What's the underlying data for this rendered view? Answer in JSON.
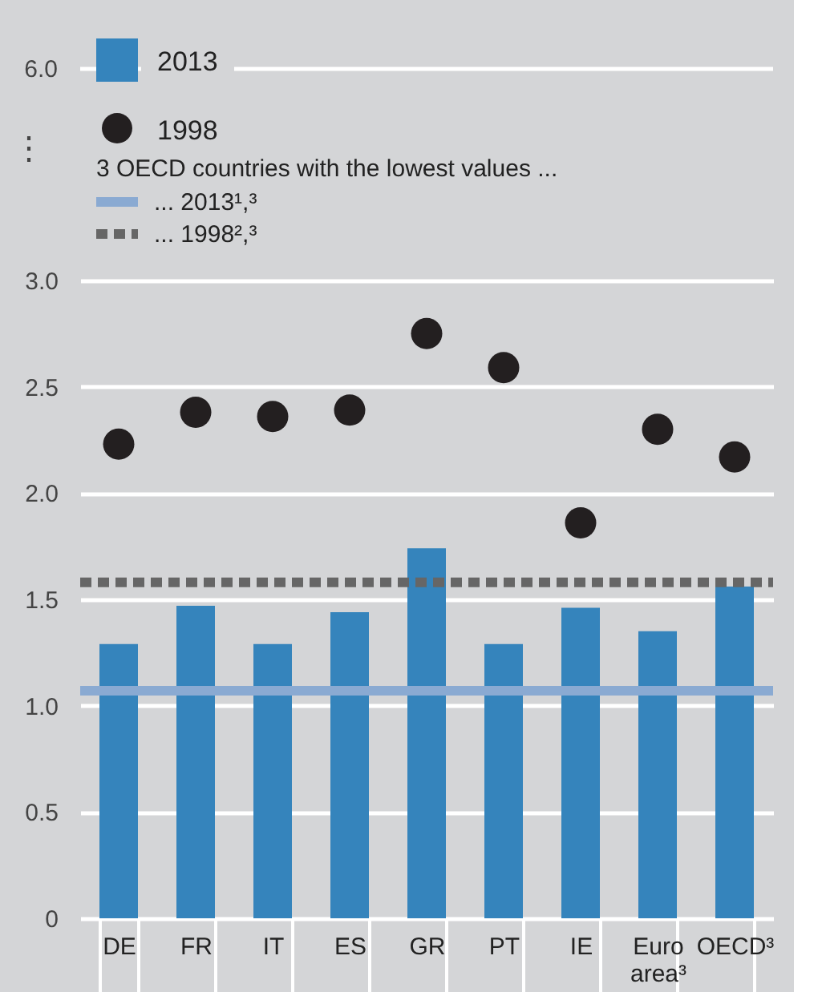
{
  "chart_data": {
    "type": "bar",
    "categories": [
      "DE",
      "FR",
      "IT",
      "ES",
      "GR",
      "PT",
      "IE",
      "Euro area³",
      "OECD³"
    ],
    "series": [
      {
        "name": "2013",
        "color": "#3584bc",
        "values": [
          1.29,
          1.47,
          1.29,
          1.44,
          1.74,
          1.29,
          1.46,
          1.35,
          1.56
        ]
      },
      {
        "name": "1998",
        "type": "scatter",
        "color": "#231f20",
        "values": [
          2.23,
          2.38,
          2.36,
          2.39,
          2.75,
          2.59,
          1.86,
          2.3,
          2.17
        ]
      }
    ],
    "ylim": [
      0,
      3
    ],
    "yticks": [
      0,
      0.5,
      {
        "value": 1,
        "label": "1.0"
      },
      1.5,
      {
        "value": 2,
        "label": "2.0"
      },
      2.5,
      {
        "value": 3,
        "label": "3.0"
      }
    ],
    "ref_lines": [
      {
        "axis": "y",
        "value": 1.07,
        "color": "#8aaad2",
        "line_style": "solid"
      },
      {
        "axis": "y",
        "value": 1.58,
        "color": "#666666",
        "line_style": "dashed"
      }
    ],
    "annotations": [
      "6.0",
      "⋮",
      "... 2013¹,³",
      "... 1998²,³"
    ],
    "legend_title": "3 OECD countries with the lowest values ...",
    "legend": "top left",
    "grid": "y"
  }
}
